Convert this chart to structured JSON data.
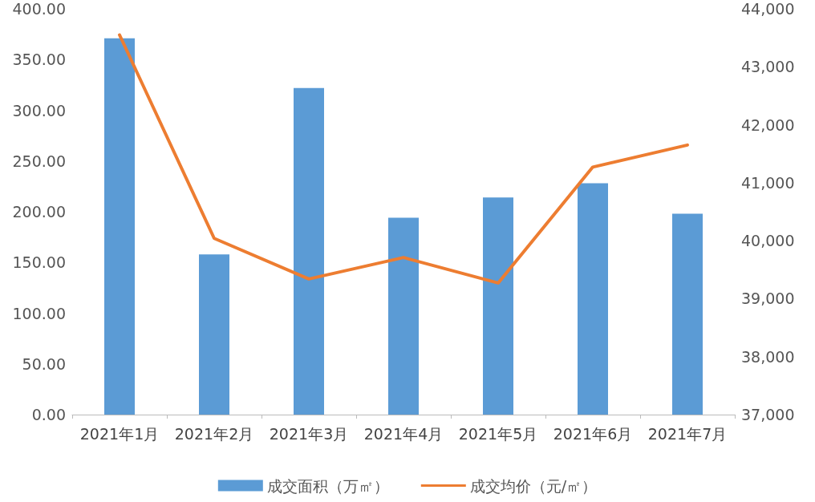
{
  "chart_data": {
    "type": "bar",
    "categories": [
      "2021年1月",
      "2021年2月",
      "2021年3月",
      "2021年4月",
      "2021年5月",
      "2021年6月",
      "2021年7月"
    ],
    "series": [
      {
        "name": "成交面积（万㎡）",
        "color": "#5b9bd5",
        "values": [
          371,
          158,
          322,
          194,
          214,
          228,
          198
        ]
      },
      {
        "name": "成交均价（元/㎡）",
        "type": "line",
        "axis": "y2",
        "color": "#ed7d31",
        "values": [
          43550,
          40040,
          39340,
          39710,
          39270,
          41270,
          41650
        ]
      }
    ],
    "ylim": [
      0,
      400
    ],
    "yticks": [
      {
        "value": 0,
        "label": "0.00"
      },
      {
        "value": 50,
        "label": "50.00"
      },
      {
        "value": 100,
        "label": "100.00"
      },
      {
        "value": 150,
        "label": "150.00"
      },
      {
        "value": 200,
        "label": "200.00"
      },
      {
        "value": 250,
        "label": "250.00"
      },
      {
        "value": 300,
        "label": "300.00"
      },
      {
        "value": 350,
        "label": "350.00"
      },
      {
        "value": 400,
        "label": "400.00"
      }
    ],
    "y2lim": [
      37000,
      44000
    ],
    "y2ticks": [
      {
        "value": 37000,
        "label": "37,000"
      },
      {
        "value": 38000,
        "label": "38,000"
      },
      {
        "value": 39000,
        "label": "39,000"
      },
      {
        "value": 40000,
        "label": "40,000"
      },
      {
        "value": 41000,
        "label": "41,000"
      },
      {
        "value": 42000,
        "label": "42,000"
      },
      {
        "value": 43000,
        "label": "43,000"
      },
      {
        "value": 44000,
        "label": "44,000"
      }
    ],
    "legend": "bottom",
    "marker": "none",
    "line_style": "solid"
  }
}
